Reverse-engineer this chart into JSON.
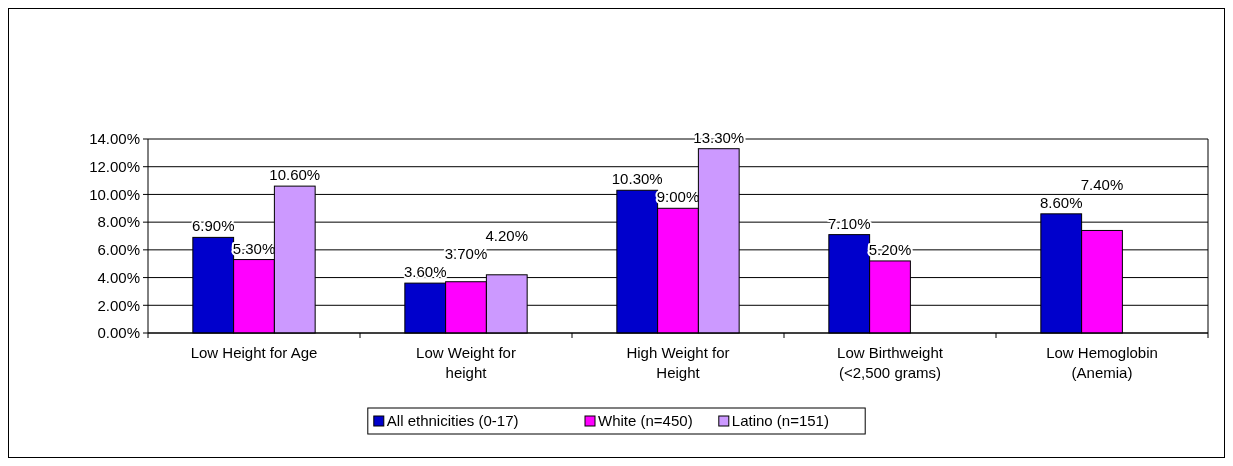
{
  "chart_data": {
    "type": "bar",
    "categories": [
      "Low Height for Age",
      "Low Weight for height",
      "High Weight for Height",
      "Low Birthweight (<2,500 grams)",
      "Low Hemoglobin (Anemia)"
    ],
    "series": [
      {
        "name": "All ethnicities (0-17)",
        "color": "#0000cc",
        "values": [
          6.9,
          3.6,
          10.3,
          7.1,
          8.6
        ],
        "value_labels": [
          "6.90%",
          "3.60%",
          "10.30%",
          "7.10%",
          "8.60%"
        ]
      },
      {
        "name": "White (n=450)",
        "color": "#ff00ff",
        "values": [
          5.3,
          3.7,
          9.0,
          5.2,
          7.4
        ],
        "value_labels": [
          "5.30%",
          "3.70%",
          "9.00%",
          "5.20%",
          "7.40%"
        ]
      },
      {
        "name": "Latino (n=151)",
        "color": "#cc99ff",
        "values": [
          10.6,
          4.2,
          13.3,
          null,
          null
        ],
        "value_labels": [
          "10.60%",
          "4.20%",
          "13.30%",
          null,
          null
        ]
      }
    ],
    "ylim": [
      0,
      14
    ],
    "yticks": [
      {
        "value": 0,
        "label": "0.00%"
      },
      {
        "value": 2,
        "label": "2.00%"
      },
      {
        "value": 4,
        "label": "4.00%"
      },
      {
        "value": 6,
        "label": "6.00%"
      },
      {
        "value": 8,
        "label": "8.00%"
      },
      {
        "value": 10,
        "label": "10.00%"
      },
      {
        "value": 12,
        "label": "12.00%"
      },
      {
        "value": 14,
        "label": "14.00%"
      }
    ],
    "grid": "y",
    "legend": "bottom"
  }
}
